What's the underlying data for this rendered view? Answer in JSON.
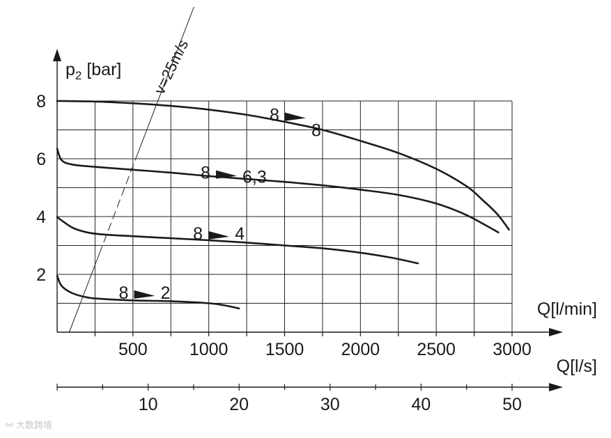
{
  "chart_data": {
    "type": "line",
    "ylabel_base": "p",
    "ylabel_sub": "2",
    "ylabel_unit": " [bar]",
    "xlabel_top": "Q[l/min]",
    "xlabel_bottom": "Q[l/s]",
    "xlim": [
      0,
      3000
    ],
    "ylim": [
      0,
      8
    ],
    "x_ticks": [
      500,
      1000,
      1500,
      2000,
      2500,
      3000
    ],
    "x_tick_labels": [
      "500",
      "1000",
      "1500",
      "2000",
      "2500",
      "3000"
    ],
    "y_ticks": [
      2,
      4,
      6,
      8
    ],
    "y_tick_labels": [
      "2",
      "4",
      "6",
      "8"
    ],
    "secondary_x_ticks": [
      10,
      20,
      30,
      40,
      50
    ],
    "secondary_x_tick_labels": [
      "10",
      "20",
      "30",
      "40",
      "50"
    ],
    "grid": true,
    "velocity_line": {
      "label": "v=25m/s",
      "points": [
        [
          80,
          0
        ],
        [
          920,
          11.5
        ]
      ]
    },
    "series": [
      {
        "name": "8 ► 8",
        "label_left": "8",
        "label_right": "8",
        "x": [
          0,
          250,
          500,
          750,
          1000,
          1250,
          1500,
          1750,
          2000,
          2250,
          2500,
          2700,
          2800,
          2900,
          2980
        ],
        "y": [
          8.0,
          7.98,
          7.92,
          7.83,
          7.7,
          7.52,
          7.28,
          7.0,
          6.62,
          6.2,
          5.65,
          5.05,
          4.6,
          4.1,
          3.55
        ]
      },
      {
        "name": "8 ► 6,3",
        "label_left": "8",
        "label_right": "6,3",
        "x": [
          0,
          30,
          100,
          250,
          500,
          750,
          1000,
          1250,
          1500,
          1750,
          2000,
          2250,
          2500,
          2700,
          2910
        ],
        "y": [
          6.35,
          5.95,
          5.8,
          5.72,
          5.62,
          5.52,
          5.4,
          5.3,
          5.2,
          5.08,
          4.93,
          4.75,
          4.45,
          4.05,
          3.45
        ]
      },
      {
        "name": "8 ► 4",
        "label_left": "8",
        "label_right": "4",
        "x": [
          0,
          100,
          200,
          300,
          500,
          750,
          1000,
          1250,
          1500,
          1750,
          2000,
          2200,
          2380
        ],
        "y": [
          3.98,
          3.62,
          3.45,
          3.38,
          3.32,
          3.25,
          3.18,
          3.1,
          3.0,
          2.9,
          2.75,
          2.58,
          2.38
        ]
      },
      {
        "name": "8 ► 2",
        "label_left": "8",
        "label_right": "2",
        "x": [
          0,
          30,
          100,
          200,
          300,
          500,
          750,
          1000,
          1100,
          1200
        ],
        "y": [
          1.95,
          1.6,
          1.35,
          1.2,
          1.15,
          1.1,
          1.07,
          1.0,
          0.93,
          0.82
        ]
      }
    ]
  },
  "watermark": {
    "text": "大数跨境"
  }
}
